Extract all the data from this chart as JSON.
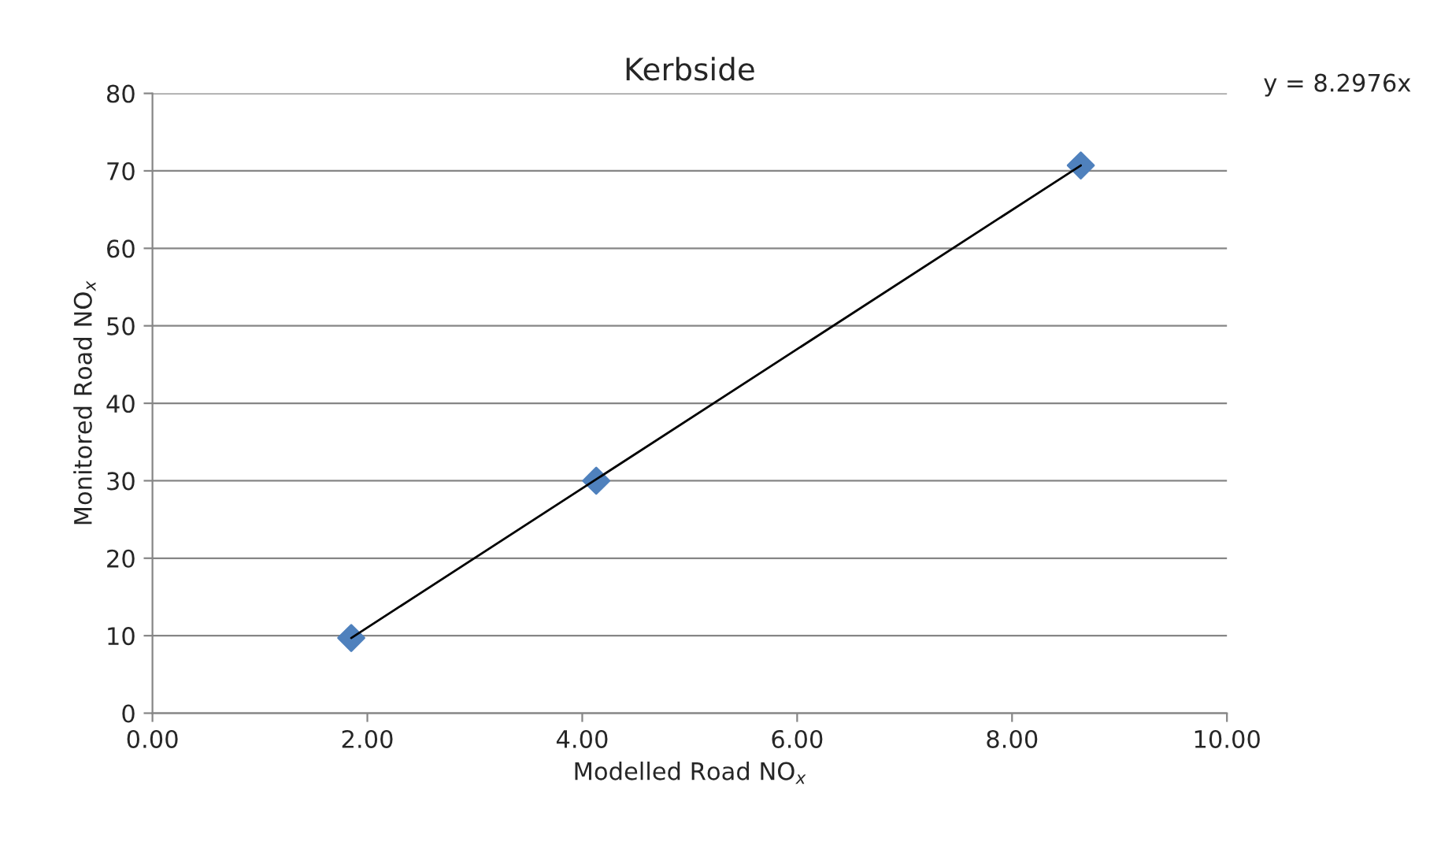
{
  "chart_data": {
    "type": "scatter",
    "title": "Kerbside",
    "xlabel": "Modelled Road NO$_{x}$",
    "ylabel": "Monitored Road NO$_{x}$",
    "series": [
      {
        "color": "#4f81bd",
        "x": [
          1.85,
          4.13,
          8.64
        ],
        "values": [
          9.7,
          30,
          70.7
        ],
        "marker": "diamond"
      },
      {
        "type": "line",
        "color": "#000000",
        "x": [
          1.85,
          8.64
        ],
        "values": [
          9.7,
          70.7
        ],
        "marker": "none",
        "line_style": "solid"
      }
    ],
    "annotations": [
      "y = 8.2976x"
    ],
    "xlim": [
      0,
      10
    ],
    "xticks": [
      {
        "value": 0,
        "label": "0.00"
      },
      {
        "value": 2,
        "label": "2.00"
      },
      {
        "value": 4,
        "label": "4.00"
      },
      {
        "value": 6,
        "label": "6.00"
      },
      {
        "value": 8,
        "label": "8.00"
      },
      {
        "value": 10,
        "label": "10.00"
      }
    ],
    "ylim": [
      0,
      80
    ],
    "yticks": [
      0,
      10,
      20,
      30,
      40,
      50,
      60,
      70,
      80
    ],
    "grid": "y",
    "legend": false
  }
}
